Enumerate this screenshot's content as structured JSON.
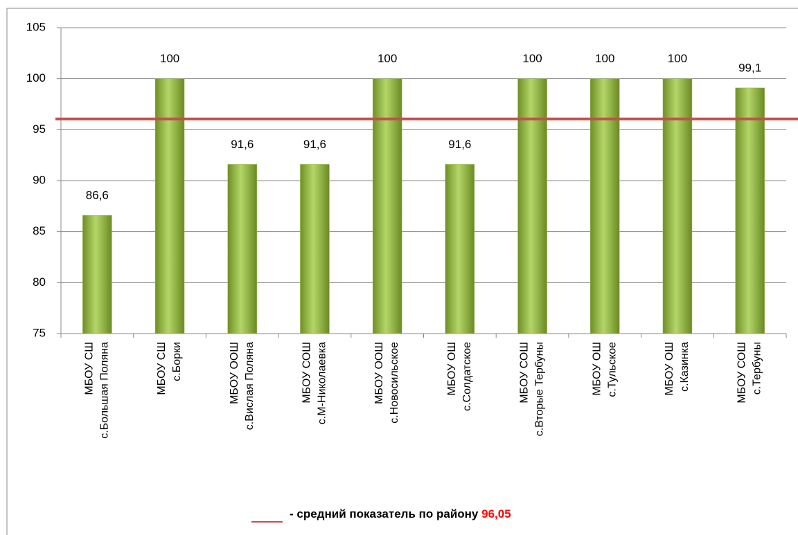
{
  "chart_data": {
    "type": "bar",
    "categories": [
      [
        "МБОУ СШ",
        "с.Большая Поляна"
      ],
      [
        "МБОУ СШ",
        "с.Борки"
      ],
      [
        "МБОУ ООШ",
        "с.Вислая Поляна"
      ],
      [
        "МБОУ СОШ",
        "с.М-Николаевка"
      ],
      [
        "МБОУ ООШ",
        "с.Новосильское"
      ],
      [
        "МБОУ ОШ",
        "с.Солдатское"
      ],
      [
        "МБОУ СОШ",
        "с.Вторые Тербуны"
      ],
      [
        "МБОУ ОШ",
        "с.Тульское"
      ],
      [
        "МБОУ ОШ",
        "с.Казинка"
      ],
      [
        "МБОУ СОШ",
        "с.Тербуны"
      ]
    ],
    "values": [
      86.6,
      100,
      91.6,
      91.6,
      100,
      91.6,
      100,
      100,
      100,
      99.1
    ],
    "value_labels": [
      "86,6",
      "100",
      "91,6",
      "91,6",
      "100",
      "91,6",
      "100",
      "100",
      "100",
      "99,1"
    ],
    "color": "#9bbb59",
    "ylim": [
      75,
      105
    ],
    "yticks": [
      75,
      80,
      85,
      90,
      95,
      100,
      105
    ],
    "grid": true,
    "average": {
      "value": 96.05,
      "label": "96,05",
      "text": "- средний показатель по району",
      "color": "#c0504d"
    }
  }
}
